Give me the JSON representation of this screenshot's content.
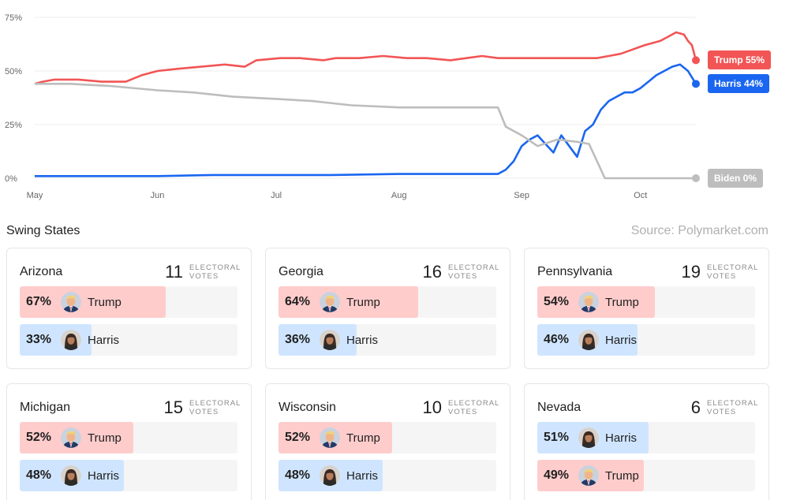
{
  "chart_data": {
    "type": "line",
    "x_ticks": [
      "May",
      "Jun",
      "Jul",
      "Aug",
      "Sep",
      "Oct"
    ],
    "y_ticks": [
      "0%",
      "25%",
      "50%",
      "75%"
    ],
    "ylim": [
      0,
      75
    ],
    "grid": true,
    "legend": "end-labels-right",
    "x_range": [
      "2024-05-01",
      "2024-10-15"
    ],
    "series": [
      {
        "name": "Trump",
        "color": "#f25555",
        "end_label": "Trump 55%",
        "points": [
          [
            "2024-05-01",
            44
          ],
          [
            "2024-05-03",
            45
          ],
          [
            "2024-05-06",
            46
          ],
          [
            "2024-05-12",
            46
          ],
          [
            "2024-05-18",
            45
          ],
          [
            "2024-05-24",
            45
          ],
          [
            "2024-05-28",
            48
          ],
          [
            "2024-06-01",
            50
          ],
          [
            "2024-06-06",
            51
          ],
          [
            "2024-06-12",
            52
          ],
          [
            "2024-06-18",
            53
          ],
          [
            "2024-06-23",
            52
          ],
          [
            "2024-06-26",
            55
          ],
          [
            "2024-07-02",
            56
          ],
          [
            "2024-07-07",
            56
          ],
          [
            "2024-07-13",
            55
          ],
          [
            "2024-07-16",
            56
          ],
          [
            "2024-07-22",
            56
          ],
          [
            "2024-07-28",
            57
          ],
          [
            "2024-08-03",
            56
          ],
          [
            "2024-08-08",
            56
          ],
          [
            "2024-08-14",
            55
          ],
          [
            "2024-08-18",
            56
          ],
          [
            "2024-08-22",
            57
          ],
          [
            "2024-08-26",
            56
          ],
          [
            "2024-08-28",
            56
          ],
          [
            "2024-09-02",
            56
          ],
          [
            "2024-09-07",
            56
          ],
          [
            "2024-09-12",
            56
          ],
          [
            "2024-09-16",
            56
          ],
          [
            "2024-09-20",
            56
          ],
          [
            "2024-09-23",
            57
          ],
          [
            "2024-09-26",
            58
          ],
          [
            "2024-09-29",
            60
          ],
          [
            "2024-10-02",
            62
          ],
          [
            "2024-10-04",
            63
          ],
          [
            "2024-10-06",
            64
          ],
          [
            "2024-10-08",
            66
          ],
          [
            "2024-10-10",
            68
          ],
          [
            "2024-10-12",
            67
          ],
          [
            "2024-10-13",
            64
          ],
          [
            "2024-10-14",
            62
          ],
          [
            "2024-10-15",
            55
          ]
        ]
      },
      {
        "name": "Harris",
        "color": "#1a66f0",
        "end_label": "Harris 44%",
        "points": [
          [
            "2024-05-01",
            1
          ],
          [
            "2024-05-15",
            1
          ],
          [
            "2024-06-01",
            1
          ],
          [
            "2024-06-15",
            1.5
          ],
          [
            "2024-07-01",
            1.5
          ],
          [
            "2024-07-15",
            1.5
          ],
          [
            "2024-08-01",
            2
          ],
          [
            "2024-08-15",
            2
          ],
          [
            "2024-08-26",
            2
          ],
          [
            "2024-08-28",
            4
          ],
          [
            "2024-08-30",
            8
          ],
          [
            "2024-09-01",
            15
          ],
          [
            "2024-09-03",
            18
          ],
          [
            "2024-09-05",
            20
          ],
          [
            "2024-09-07",
            16
          ],
          [
            "2024-09-09",
            12
          ],
          [
            "2024-09-11",
            20
          ],
          [
            "2024-09-13",
            15
          ],
          [
            "2024-09-15",
            10
          ],
          [
            "2024-09-17",
            22
          ],
          [
            "2024-09-19",
            25
          ],
          [
            "2024-09-21",
            32
          ],
          [
            "2024-09-23",
            36
          ],
          [
            "2024-09-25",
            38
          ],
          [
            "2024-09-27",
            40
          ],
          [
            "2024-09-29",
            40
          ],
          [
            "2024-10-01",
            42
          ],
          [
            "2024-10-03",
            45
          ],
          [
            "2024-10-05",
            48
          ],
          [
            "2024-10-07",
            50
          ],
          [
            "2024-10-09",
            52
          ],
          [
            "2024-10-11",
            53
          ],
          [
            "2024-10-13",
            50
          ],
          [
            "2024-10-15",
            44
          ]
        ]
      },
      {
        "name": "Biden",
        "color": "#bdbdbd",
        "end_label": "Biden 0%",
        "points": [
          [
            "2024-05-01",
            44
          ],
          [
            "2024-05-10",
            44
          ],
          [
            "2024-05-20",
            43
          ],
          [
            "2024-06-01",
            41
          ],
          [
            "2024-06-10",
            40
          ],
          [
            "2024-06-20",
            38
          ],
          [
            "2024-07-01",
            37
          ],
          [
            "2024-07-10",
            36
          ],
          [
            "2024-07-20",
            34
          ],
          [
            "2024-08-01",
            33
          ],
          [
            "2024-08-10",
            33
          ],
          [
            "2024-08-20",
            33
          ],
          [
            "2024-08-26",
            33
          ],
          [
            "2024-08-28",
            24
          ],
          [
            "2024-09-01",
            20
          ],
          [
            "2024-09-05",
            15
          ],
          [
            "2024-09-10",
            18
          ],
          [
            "2024-09-15",
            17
          ],
          [
            "2024-09-18",
            16
          ],
          [
            "2024-09-20",
            8
          ],
          [
            "2024-09-22",
            0
          ],
          [
            "2024-10-15",
            0
          ]
        ]
      }
    ]
  },
  "section": {
    "title": "Swing States",
    "source": "Source: Polymarket.com"
  },
  "ev_label": "ELECTORAL VOTES",
  "states": [
    {
      "name": "Arizona",
      "ev": "11",
      "rows": [
        {
          "candidate": "Trump",
          "party": "trump",
          "pct": 67,
          "pct_label": "67%"
        },
        {
          "candidate": "Harris",
          "party": "harris",
          "pct": 33,
          "pct_label": "33%"
        }
      ]
    },
    {
      "name": "Georgia",
      "ev": "16",
      "rows": [
        {
          "candidate": "Trump",
          "party": "trump",
          "pct": 64,
          "pct_label": "64%"
        },
        {
          "candidate": "Harris",
          "party": "harris",
          "pct": 36,
          "pct_label": "36%"
        }
      ]
    },
    {
      "name": "Pennsylvania",
      "ev": "19",
      "rows": [
        {
          "candidate": "Trump",
          "party": "trump",
          "pct": 54,
          "pct_label": "54%"
        },
        {
          "candidate": "Harris",
          "party": "harris",
          "pct": 46,
          "pct_label": "46%"
        }
      ]
    },
    {
      "name": "Michigan",
      "ev": "15",
      "rows": [
        {
          "candidate": "Trump",
          "party": "trump",
          "pct": 52,
          "pct_label": "52%"
        },
        {
          "candidate": "Harris",
          "party": "harris",
          "pct": 48,
          "pct_label": "48%"
        }
      ]
    },
    {
      "name": "Wisconsin",
      "ev": "10",
      "rows": [
        {
          "candidate": "Trump",
          "party": "trump",
          "pct": 52,
          "pct_label": "52%"
        },
        {
          "candidate": "Harris",
          "party": "harris",
          "pct": 48,
          "pct_label": "48%"
        }
      ]
    },
    {
      "name": "Nevada",
      "ev": "6",
      "rows": [
        {
          "candidate": "Harris",
          "party": "harris",
          "pct": 51,
          "pct_label": "51%"
        },
        {
          "candidate": "Trump",
          "party": "trump",
          "pct": 49,
          "pct_label": "49%"
        }
      ]
    }
  ]
}
